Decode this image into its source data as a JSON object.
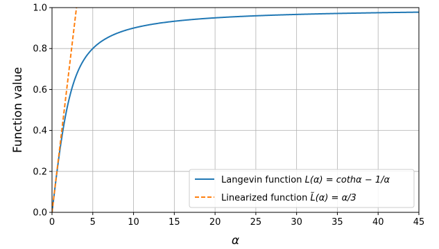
{
  "chart_data": {
    "type": "line",
    "xlabel": "α",
    "ylabel": "Function value",
    "xlim": [
      0,
      45
    ],
    "ylim": [
      0,
      1.0
    ],
    "xticks": [
      0,
      5,
      10,
      15,
      20,
      25,
      30,
      35,
      40,
      45
    ],
    "yticks": [
      0.0,
      0.2,
      0.4,
      0.6,
      0.8,
      1.0
    ],
    "xtick_labels": [
      "0",
      "5",
      "10",
      "15",
      "20",
      "25",
      "30",
      "35",
      "40",
      "45"
    ],
    "ytick_labels": [
      "0.0",
      "0.2",
      "0.4",
      "0.6",
      "0.8",
      "1.0"
    ],
    "grid": true,
    "legend_position": "lower-right",
    "series": [
      {
        "name": "Langevin function L(α) = cothα − 1/α",
        "legend_prefix": "Langevin function ",
        "legend_math": "L(α) = cothα − 1/α",
        "color": "#1f77b4",
        "style": "solid",
        "x": [
          0,
          0.5,
          1,
          1.5,
          2,
          2.5,
          3,
          3.5,
          4,
          4.5,
          5,
          6,
          7,
          8,
          9,
          10,
          12,
          14,
          16,
          18,
          20,
          22,
          25,
          28,
          30,
          32,
          35,
          38,
          40,
          42,
          45
        ],
        "y": [
          0,
          0.164,
          0.313,
          0.438,
          0.537,
          0.614,
          0.672,
          0.717,
          0.751,
          0.778,
          0.8,
          0.833,
          0.857,
          0.875,
          0.889,
          0.9,
          0.917,
          0.929,
          0.938,
          0.944,
          0.95,
          0.955,
          0.96,
          0.964,
          0.967,
          0.969,
          0.971,
          0.974,
          0.975,
          0.976,
          0.978
        ]
      },
      {
        "name": "Linearized function L̃(α) = α/3",
        "legend_prefix": "Linearized function ",
        "legend_math": "L̃(α) = α/3",
        "color": "#ff7f0e",
        "style": "dashed",
        "x": [
          0,
          3.0
        ],
        "y": [
          0,
          1.0
        ]
      }
    ]
  }
}
